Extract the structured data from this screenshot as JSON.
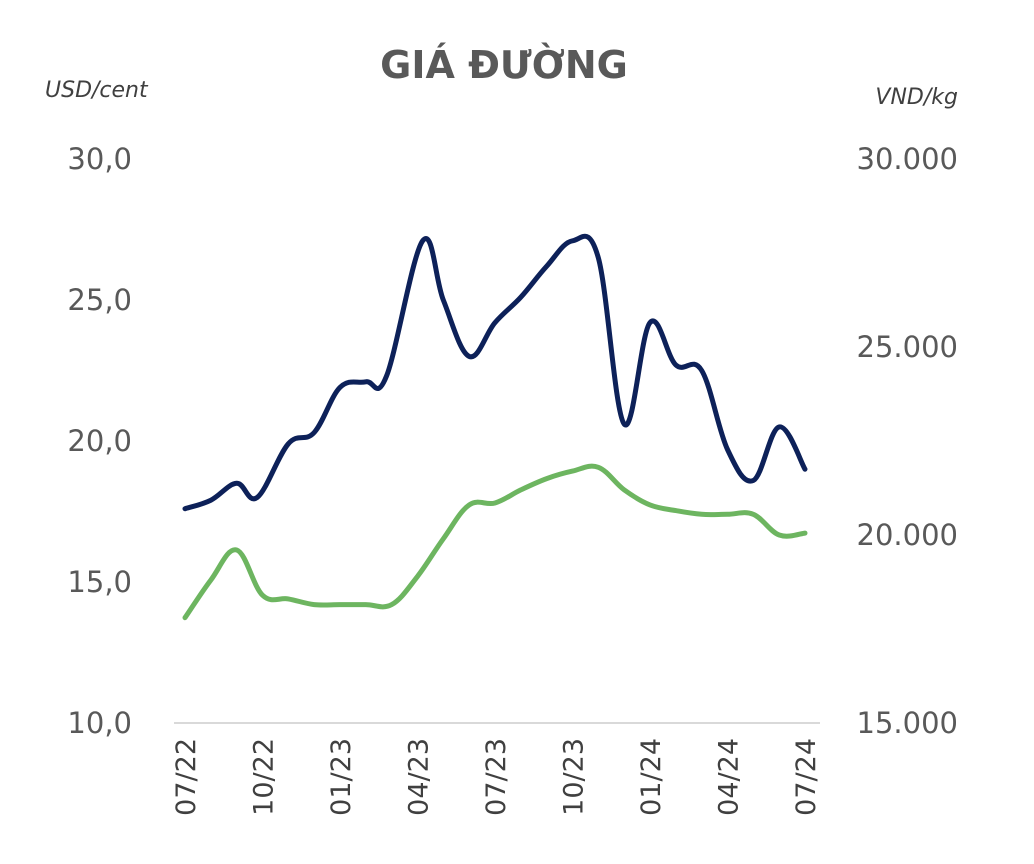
{
  "chart_data": {
    "type": "line",
    "title": "GIÁ ĐƯỜNG",
    "left_unit": "USD/cent",
    "right_unit": "VND/kg",
    "left_axis": {
      "ylim": [
        10,
        30
      ],
      "ticks": [
        "10,0",
        "15,0",
        "20,0",
        "25,0",
        "30,0"
      ]
    },
    "right_axis": {
      "ylim": [
        15000,
        30000
      ],
      "ticks": [
        "15.000",
        "20.000",
        "25.000",
        "30.000"
      ]
    },
    "x_ticks": [
      "07/22",
      "10/22",
      "01/23",
      "04/23",
      "07/23",
      "10/23",
      "01/24",
      "04/24",
      "07/24"
    ],
    "x_range": [
      0,
      24
    ],
    "series": [
      {
        "axis": "left",
        "color": "#0D2159",
        "points": [
          [
            0,
            17.6
          ],
          [
            1,
            17.9
          ],
          [
            2,
            18.5
          ],
          [
            2.8,
            18.0
          ],
          [
            4,
            19.9
          ],
          [
            5,
            20.3
          ],
          [
            6,
            21.9
          ],
          [
            7,
            22.1
          ],
          [
            7.8,
            22.3
          ],
          [
            9.2,
            27.1
          ],
          [
            10,
            25.0
          ],
          [
            11,
            23.0
          ],
          [
            12,
            24.2
          ],
          [
            13,
            25.1
          ],
          [
            14,
            26.2
          ],
          [
            15,
            27.1
          ],
          [
            16,
            26.5
          ],
          [
            17,
            20.6
          ],
          [
            18,
            24.2
          ],
          [
            19,
            22.7
          ],
          [
            20,
            22.5
          ],
          [
            21,
            19.7
          ],
          [
            22,
            18.6
          ],
          [
            23,
            20.5
          ],
          [
            24,
            19.0
          ]
        ]
      },
      {
        "axis": "right",
        "color": "#6DB560",
        "points": [
          [
            0,
            17800
          ],
          [
            1,
            18800
          ],
          [
            2,
            19600
          ],
          [
            3,
            18400
          ],
          [
            4,
            18300
          ],
          [
            5,
            18150
          ],
          [
            6,
            18150
          ],
          [
            7,
            18150
          ],
          [
            8,
            18150
          ],
          [
            9,
            18900
          ],
          [
            10,
            19900
          ],
          [
            11,
            20800
          ],
          [
            12,
            20850
          ],
          [
            13,
            21200
          ],
          [
            14,
            21500
          ],
          [
            15,
            21700
          ],
          [
            16,
            21800
          ],
          [
            17,
            21200
          ],
          [
            18,
            20800
          ],
          [
            19,
            20650
          ],
          [
            20,
            20550
          ],
          [
            21,
            20550
          ],
          [
            22,
            20550
          ],
          [
            23,
            20000
          ],
          [
            24,
            20050
          ]
        ]
      }
    ]
  }
}
